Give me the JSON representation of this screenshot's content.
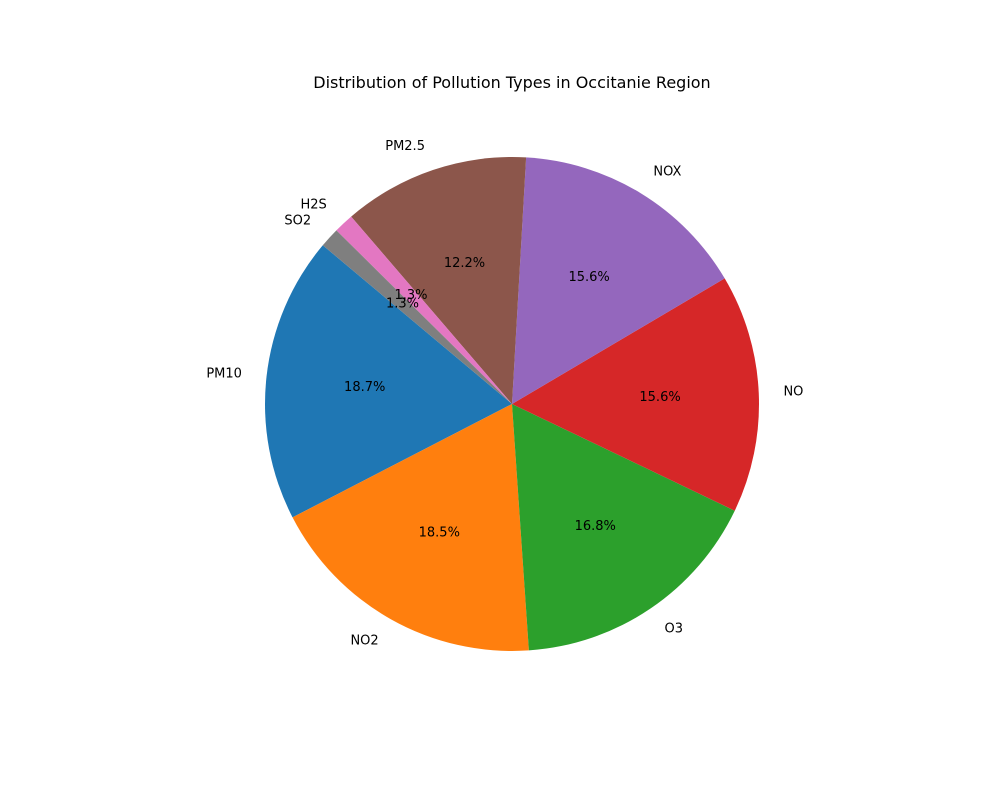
{
  "chart_data": {
    "type": "pie",
    "title": "Distribution of Pollution Types in Occitanie Region",
    "labels": [
      "PM10",
      "NO2",
      "O3",
      "NO",
      "NOX",
      "PM2.5",
      "H2S",
      "SO2"
    ],
    "values": [
      18.7,
      18.5,
      16.8,
      15.6,
      15.6,
      12.2,
      1.3,
      1.3
    ],
    "value_labels": [
      "18.7%",
      "18.5%",
      "16.8%",
      "15.6%",
      "15.6%",
      "12.2%",
      "1.3%",
      "1.3%"
    ],
    "colors": [
      "#1f77b4",
      "#ff7f0e",
      "#2ca02c",
      "#d62728",
      "#9467bd",
      "#8c564b",
      "#e377c2",
      "#7f7f7f"
    ],
    "start_angle_deg": 140,
    "direction": "counterclockwise"
  }
}
